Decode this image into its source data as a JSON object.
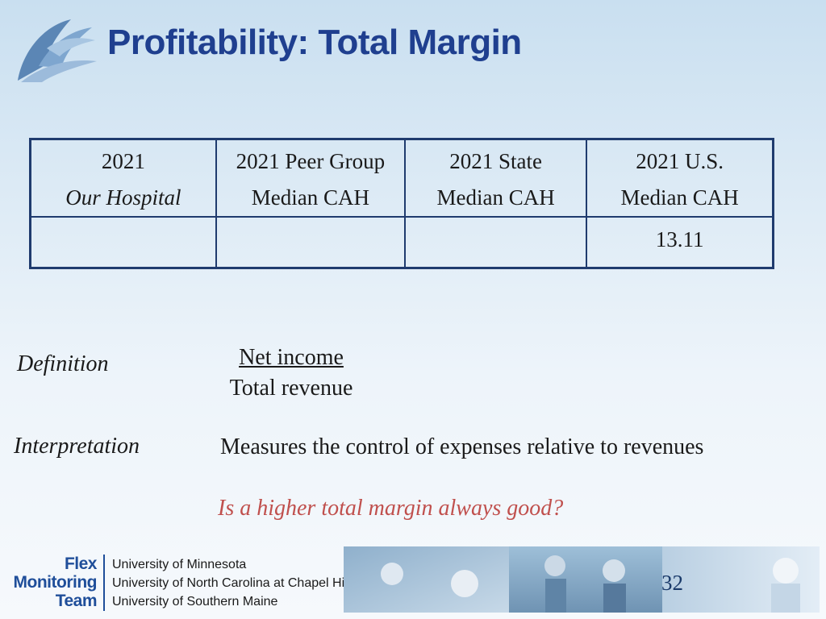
{
  "slide": {
    "title": "Profitability:  Total Margin",
    "page_number": "32"
  },
  "table": {
    "headers": [
      {
        "line1": "2021",
        "line2": "Our Hospital"
      },
      {
        "line1": "2021 Peer Group",
        "line2": "Median CAH"
      },
      {
        "line1": "2021 State",
        "line2": "Median CAH"
      },
      {
        "line1": "2021 U.S.",
        "line2": "Median CAH"
      }
    ],
    "values": [
      "",
      "",
      "",
      "13.11"
    ]
  },
  "definition": {
    "label": "Definition",
    "numerator": "Net income",
    "denominator": "Total revenue"
  },
  "interpretation": {
    "label": "Interpretation",
    "text": "Measures the control of expenses relative to revenues"
  },
  "question": "Is a higher total margin always good?",
  "footer": {
    "logo_lines": [
      "Flex",
      "Monitoring",
      "Team"
    ],
    "universities": [
      "University of Minnesota",
      "University of North Carolina at Chapel Hill",
      "University of Southern Maine"
    ]
  },
  "colors": {
    "title": "#1f3f8f",
    "table_border": "#1f3b6e",
    "question": "#c0504d",
    "logo_text": "#1f4e9a"
  }
}
